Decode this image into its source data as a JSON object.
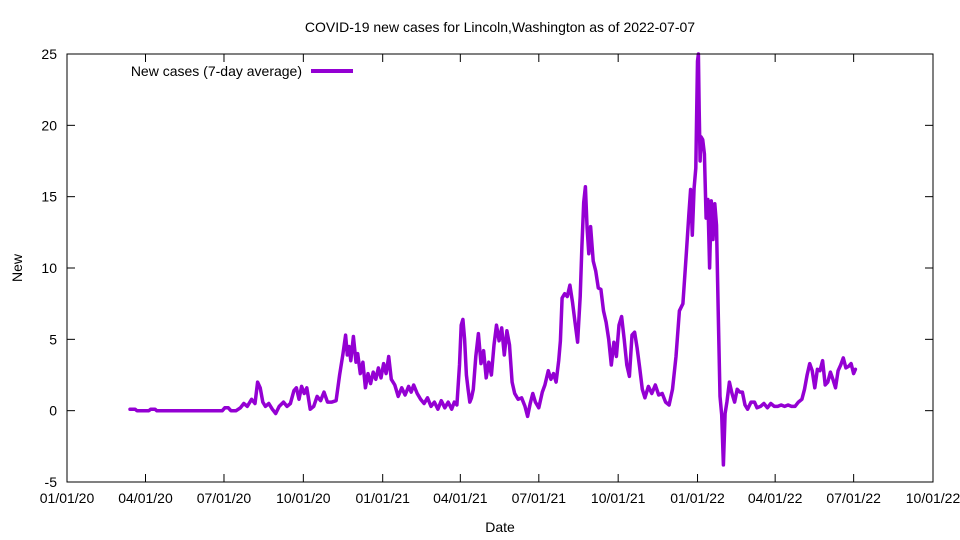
{
  "chart_data": {
    "type": "line",
    "title": "COVID-19 new cases for Lincoln,Washington as of 2022-07-07",
    "xlabel": "Date",
    "ylabel": "New",
    "xlim": [
      "2020-01-01",
      "2022-10-01"
    ],
    "ylim": [
      -5,
      25
    ],
    "x_ticks": [
      {
        "date": "2020-01-01",
        "label": "01/01/20"
      },
      {
        "date": "2020-04-01",
        "label": "04/01/20"
      },
      {
        "date": "2020-07-01",
        "label": "07/01/20"
      },
      {
        "date": "2020-10-01",
        "label": "10/01/20"
      },
      {
        "date": "2021-01-01",
        "label": "01/01/21"
      },
      {
        "date": "2021-04-01",
        "label": "04/01/21"
      },
      {
        "date": "2021-07-01",
        "label": "07/01/21"
      },
      {
        "date": "2021-10-01",
        "label": "10/01/21"
      },
      {
        "date": "2022-01-01",
        "label": "01/01/22"
      },
      {
        "date": "2022-04-01",
        "label": "04/01/22"
      },
      {
        "date": "2022-07-01",
        "label": "07/01/22"
      },
      {
        "date": "2022-10-01",
        "label": "10/01/22"
      }
    ],
    "y_ticks": [
      -5,
      0,
      5,
      10,
      15,
      20,
      25
    ],
    "grid": false,
    "legend": {
      "position": "top-left",
      "entries": [
        "New cases (7-day average)"
      ]
    },
    "series": [
      {
        "name": "New cases (7-day average)",
        "color": "#9400d3",
        "points": [
          [
            "2020-03-14",
            0.1
          ],
          [
            "2020-03-20",
            0.1
          ],
          [
            "2020-03-22",
            0
          ],
          [
            "2020-04-05",
            0
          ],
          [
            "2020-04-07",
            0.1
          ],
          [
            "2020-04-12",
            0.1
          ],
          [
            "2020-04-14",
            0
          ],
          [
            "2020-06-29",
            0
          ],
          [
            "2020-07-02",
            0.2
          ],
          [
            "2020-07-06",
            0.2
          ],
          [
            "2020-07-09",
            0
          ],
          [
            "2020-07-15",
            0
          ],
          [
            "2020-07-20",
            0.2
          ],
          [
            "2020-07-24",
            0.5
          ],
          [
            "2020-07-28",
            0.3
          ],
          [
            "2020-08-02",
            0.8
          ],
          [
            "2020-08-06",
            0.5
          ],
          [
            "2020-08-09",
            2.0
          ],
          [
            "2020-08-12",
            1.6
          ],
          [
            "2020-08-15",
            0.6
          ],
          [
            "2020-08-18",
            0.3
          ],
          [
            "2020-08-22",
            0.5
          ],
          [
            "2020-08-26",
            0.1
          ],
          [
            "2020-08-30",
            -0.2
          ],
          [
            "2020-09-03",
            0.3
          ],
          [
            "2020-09-08",
            0.6
          ],
          [
            "2020-09-12",
            0.3
          ],
          [
            "2020-09-16",
            0.5
          ],
          [
            "2020-09-20",
            1.4
          ],
          [
            "2020-09-23",
            1.6
          ],
          [
            "2020-09-26",
            0.8
          ],
          [
            "2020-09-29",
            1.7
          ],
          [
            "2020-10-02",
            1.2
          ],
          [
            "2020-10-05",
            1.6
          ],
          [
            "2020-10-09",
            0.1
          ],
          [
            "2020-10-13",
            0.3
          ],
          [
            "2020-10-17",
            1.0
          ],
          [
            "2020-10-21",
            0.7
          ],
          [
            "2020-10-25",
            1.3
          ],
          [
            "2020-10-29",
            0.6
          ],
          [
            "2020-11-03",
            0.6
          ],
          [
            "2020-11-08",
            0.7
          ],
          [
            "2020-11-12",
            2.5
          ],
          [
            "2020-11-16",
            4.0
          ],
          [
            "2020-11-19",
            5.3
          ],
          [
            "2020-11-21",
            3.9
          ],
          [
            "2020-11-23",
            4.5
          ],
          [
            "2020-11-25",
            3.5
          ],
          [
            "2020-11-28",
            5.2
          ],
          [
            "2020-12-01",
            3.4
          ],
          [
            "2020-12-03",
            4.0
          ],
          [
            "2020-12-06",
            2.6
          ],
          [
            "2020-12-09",
            3.4
          ],
          [
            "2020-12-12",
            1.6
          ],
          [
            "2020-12-15",
            2.6
          ],
          [
            "2020-12-18",
            1.9
          ],
          [
            "2020-12-21",
            2.7
          ],
          [
            "2020-12-24",
            2.2
          ],
          [
            "2020-12-27",
            3.0
          ],
          [
            "2020-12-30",
            2.3
          ],
          [
            "2021-01-02",
            3.3
          ],
          [
            "2021-01-05",
            2.6
          ],
          [
            "2021-01-08",
            3.8
          ],
          [
            "2021-01-11",
            2.2
          ],
          [
            "2021-01-15",
            1.8
          ],
          [
            "2021-01-19",
            1.0
          ],
          [
            "2021-01-23",
            1.6
          ],
          [
            "2021-01-27",
            1.1
          ],
          [
            "2021-01-31",
            1.7
          ],
          [
            "2021-02-03",
            1.3
          ],
          [
            "2021-02-06",
            1.8
          ],
          [
            "2021-02-10",
            1.2
          ],
          [
            "2021-02-14",
            0.8
          ],
          [
            "2021-02-18",
            0.5
          ],
          [
            "2021-02-22",
            0.9
          ],
          [
            "2021-02-26",
            0.3
          ],
          [
            "2021-03-02",
            0.6
          ],
          [
            "2021-03-06",
            0.1
          ],
          [
            "2021-03-10",
            0.7
          ],
          [
            "2021-03-14",
            0.2
          ],
          [
            "2021-03-18",
            0.6
          ],
          [
            "2021-03-22",
            0.1
          ],
          [
            "2021-03-25",
            0.6
          ],
          [
            "2021-03-28",
            0.4
          ],
          [
            "2021-03-31",
            3.2
          ],
          [
            "2021-04-02",
            6.0
          ],
          [
            "2021-04-04",
            6.4
          ],
          [
            "2021-04-06",
            5.0
          ],
          [
            "2021-04-08",
            2.5
          ],
          [
            "2021-04-10",
            1.5
          ],
          [
            "2021-04-12",
            0.6
          ],
          [
            "2021-04-14",
            0.9
          ],
          [
            "2021-04-16",
            1.5
          ],
          [
            "2021-04-19",
            3.8
          ],
          [
            "2021-04-22",
            5.4
          ],
          [
            "2021-04-25",
            3.3
          ],
          [
            "2021-04-28",
            4.2
          ],
          [
            "2021-05-01",
            2.3
          ],
          [
            "2021-05-04",
            3.4
          ],
          [
            "2021-05-07",
            2.5
          ],
          [
            "2021-05-10",
            4.6
          ],
          [
            "2021-05-13",
            6.0
          ],
          [
            "2021-05-16",
            4.9
          ],
          [
            "2021-05-19",
            5.8
          ],
          [
            "2021-05-22",
            3.9
          ],
          [
            "2021-05-25",
            5.6
          ],
          [
            "2021-05-28",
            4.6
          ],
          [
            "2021-05-31",
            2.0
          ],
          [
            "2021-06-03",
            1.2
          ],
          [
            "2021-06-07",
            0.8
          ],
          [
            "2021-06-11",
            0.9
          ],
          [
            "2021-06-15",
            0.3
          ],
          [
            "2021-06-18",
            -0.4
          ],
          [
            "2021-06-21",
            0.5
          ],
          [
            "2021-06-24",
            1.2
          ],
          [
            "2021-06-27",
            0.6
          ],
          [
            "2021-07-01",
            0.2
          ],
          [
            "2021-07-05",
            1.3
          ],
          [
            "2021-07-08",
            1.8
          ],
          [
            "2021-07-12",
            2.8
          ],
          [
            "2021-07-15",
            2.2
          ],
          [
            "2021-07-18",
            2.6
          ],
          [
            "2021-07-21",
            2.0
          ],
          [
            "2021-07-24",
            3.5
          ],
          [
            "2021-07-26",
            4.9
          ],
          [
            "2021-07-28",
            7.9
          ],
          [
            "2021-07-31",
            8.2
          ],
          [
            "2021-08-03",
            8.0
          ],
          [
            "2021-08-06",
            8.8
          ],
          [
            "2021-08-09",
            7.6
          ],
          [
            "2021-08-12",
            6.2
          ],
          [
            "2021-08-15",
            4.8
          ],
          [
            "2021-08-18",
            8.0
          ],
          [
            "2021-08-20",
            11.5
          ],
          [
            "2021-08-22",
            14.6
          ],
          [
            "2021-08-24",
            15.7
          ],
          [
            "2021-08-26",
            12.8
          ],
          [
            "2021-08-28",
            11.0
          ],
          [
            "2021-08-30",
            12.9
          ],
          [
            "2021-09-02",
            10.5
          ],
          [
            "2021-09-05",
            9.8
          ],
          [
            "2021-09-08",
            8.6
          ],
          [
            "2021-09-11",
            8.5
          ],
          [
            "2021-09-14",
            7.0
          ],
          [
            "2021-09-17",
            6.2
          ],
          [
            "2021-09-20",
            5.0
          ],
          [
            "2021-09-23",
            3.2
          ],
          [
            "2021-09-26",
            4.8
          ],
          [
            "2021-09-29",
            3.8
          ],
          [
            "2021-10-02",
            6.0
          ],
          [
            "2021-10-05",
            6.6
          ],
          [
            "2021-10-08",
            5.0
          ],
          [
            "2021-10-11",
            3.2
          ],
          [
            "2021-10-14",
            2.4
          ],
          [
            "2021-10-17",
            5.3
          ],
          [
            "2021-10-20",
            5.5
          ],
          [
            "2021-10-23",
            4.4
          ],
          [
            "2021-10-26",
            3.0
          ],
          [
            "2021-10-29",
            1.5
          ],
          [
            "2021-11-01",
            0.9
          ],
          [
            "2021-11-05",
            1.7
          ],
          [
            "2021-11-09",
            1.2
          ],
          [
            "2021-11-13",
            1.8
          ],
          [
            "2021-11-17",
            1.1
          ],
          [
            "2021-11-21",
            1.2
          ],
          [
            "2021-11-25",
            0.6
          ],
          [
            "2021-11-29",
            0.4
          ],
          [
            "2021-12-03",
            1.5
          ],
          [
            "2021-12-07",
            3.8
          ],
          [
            "2021-12-11",
            7.0
          ],
          [
            "2021-12-15",
            7.5
          ],
          [
            "2021-12-19",
            11.0
          ],
          [
            "2021-12-22",
            13.8
          ],
          [
            "2021-12-24",
            15.5
          ],
          [
            "2021-12-26",
            12.3
          ],
          [
            "2021-12-28",
            15.6
          ],
          [
            "2021-12-30",
            17.0
          ],
          [
            "2022-01-01",
            24.5
          ],
          [
            "2022-01-02",
            25.0
          ],
          [
            "2022-01-03",
            21.0
          ],
          [
            "2022-01-04",
            17.5
          ],
          [
            "2022-01-05",
            19.2
          ],
          [
            "2022-01-07",
            19.0
          ],
          [
            "2022-01-09",
            18.0
          ],
          [
            "2022-01-11",
            13.5
          ],
          [
            "2022-01-13",
            14.8
          ],
          [
            "2022-01-15",
            10.0
          ],
          [
            "2022-01-17",
            14.7
          ],
          [
            "2022-01-19",
            12.0
          ],
          [
            "2022-01-21",
            14.5
          ],
          [
            "2022-01-23",
            13.0
          ],
          [
            "2022-01-25",
            7.0
          ],
          [
            "2022-01-27",
            1.0
          ],
          [
            "2022-01-29",
            -0.3
          ],
          [
            "2022-01-31",
            -3.8
          ],
          [
            "2022-02-02",
            -0.2
          ],
          [
            "2022-02-04",
            0.6
          ],
          [
            "2022-02-07",
            2.0
          ],
          [
            "2022-02-10",
            1.2
          ],
          [
            "2022-02-13",
            0.6
          ],
          [
            "2022-02-16",
            1.5
          ],
          [
            "2022-02-19",
            1.3
          ],
          [
            "2022-02-22",
            1.3
          ],
          [
            "2022-02-25",
            0.4
          ],
          [
            "2022-02-28",
            0.1
          ],
          [
            "2022-03-04",
            0.6
          ],
          [
            "2022-03-08",
            0.6
          ],
          [
            "2022-03-11",
            0.2
          ],
          [
            "2022-03-15",
            0.3
          ],
          [
            "2022-03-19",
            0.5
          ],
          [
            "2022-03-23",
            0.2
          ],
          [
            "2022-03-27",
            0.5
          ],
          [
            "2022-03-31",
            0.3
          ],
          [
            "2022-04-04",
            0.3
          ],
          [
            "2022-04-08",
            0.4
          ],
          [
            "2022-04-12",
            0.3
          ],
          [
            "2022-04-16",
            0.4
          ],
          [
            "2022-04-20",
            0.3
          ],
          [
            "2022-04-24",
            0.3
          ],
          [
            "2022-04-28",
            0.6
          ],
          [
            "2022-05-02",
            0.8
          ],
          [
            "2022-05-05",
            1.5
          ],
          [
            "2022-05-08",
            2.5
          ],
          [
            "2022-05-11",
            3.3
          ],
          [
            "2022-05-14",
            2.8
          ],
          [
            "2022-05-17",
            1.6
          ],
          [
            "2022-05-20",
            2.9
          ],
          [
            "2022-05-23",
            2.8
          ],
          [
            "2022-05-26",
            3.5
          ],
          [
            "2022-05-29",
            1.8
          ],
          [
            "2022-06-01",
            2.0
          ],
          [
            "2022-06-04",
            2.7
          ],
          [
            "2022-06-07",
            2.2
          ],
          [
            "2022-06-10",
            1.6
          ],
          [
            "2022-06-13",
            2.8
          ],
          [
            "2022-06-16",
            3.2
          ],
          [
            "2022-06-19",
            3.7
          ],
          [
            "2022-06-22",
            3.0
          ],
          [
            "2022-06-25",
            3.1
          ],
          [
            "2022-06-28",
            3.3
          ],
          [
            "2022-07-01",
            2.6
          ],
          [
            "2022-07-03",
            2.9
          ]
        ]
      }
    ]
  }
}
